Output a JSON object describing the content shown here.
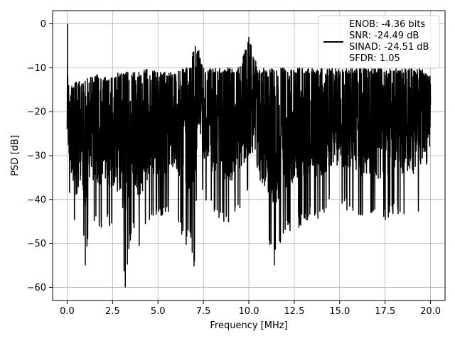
{
  "chart_data": {
    "type": "line",
    "title": "",
    "xlabel": "Frequency [MHz]",
    "ylabel": "PSD [dB]",
    "xlim": [
      -0.8,
      20.8
    ],
    "ylim": [
      -63,
      3
    ],
    "x_ticks": [
      0.0,
      2.5,
      5.0,
      7.5,
      10.0,
      12.5,
      15.0,
      17.5,
      20.0
    ],
    "x_tick_labels": [
      "0.0",
      "2.5",
      "5.0",
      "7.5",
      "10.0",
      "12.5",
      "15.0",
      "17.5",
      "20.0"
    ],
    "y_ticks": [
      0,
      -10,
      -20,
      -30,
      -40,
      -50,
      -60
    ],
    "y_tick_labels": [
      "0",
      "−10",
      "−20",
      "−30",
      "−40",
      "−50",
      "−60"
    ],
    "grid": true,
    "legend_position": "top-right",
    "legend_entries": [
      "ENOB: -4.36 bits",
      "SNR: -24.49 dB",
      "SINAD: -24.51 dB",
      "SFDR: 1.05"
    ],
    "series": [
      {
        "color": "#000000",
        "x": [
          0.0,
          0.02,
          0.05,
          0.1,
          0.2,
          0.3,
          0.45,
          0.6,
          0.75,
          0.9,
          1.0,
          1.2,
          1.5,
          1.8,
          2.0,
          2.4,
          2.8,
          3.2,
          3.6,
          4.0,
          4.5,
          5.0,
          5.5,
          6.0,
          6.5,
          6.8,
          7.0,
          7.2,
          7.5,
          8.0,
          8.5,
          9.0,
          9.5,
          10.0,
          10.5,
          11.0,
          11.4,
          12.0,
          12.5,
          13.0,
          13.5,
          14.0,
          14.5,
          15.0,
          15.5,
          16.0,
          16.5,
          17.0,
          17.5,
          18.0,
          18.5,
          19.0,
          19.5,
          20.0
        ],
        "y_upper": [
          -24,
          0,
          -12,
          -14,
          -14,
          -14,
          -13,
          -13,
          -13,
          -13,
          -12,
          -12,
          -12,
          -11,
          -12,
          -12,
          -11,
          -11,
          -11,
          -11,
          -10,
          -11,
          -11,
          -11,
          -10,
          -9,
          -5,
          -6,
          -10,
          -10,
          -10,
          -10,
          -10,
          -3,
          -10,
          -10,
          -10,
          -10,
          -10,
          -10,
          -10,
          -10,
          -10,
          -10,
          -10,
          -10,
          -10,
          -10,
          -10,
          -10,
          -10,
          -10,
          -10,
          -12
        ],
        "y_lower": [
          -24,
          -12,
          -35,
          -38,
          -42,
          -45,
          -47,
          -54,
          -43,
          -50,
          -55,
          -46,
          -45,
          -48,
          -44,
          -47,
          -50,
          -60,
          -45,
          -53,
          -45,
          -44,
          -43,
          -44,
          -51,
          -49,
          -57,
          -30,
          -40,
          -43,
          -45,
          -46,
          -43,
          -40,
          -45,
          -50,
          -55,
          -48,
          -47,
          -46,
          -44,
          -45,
          -41,
          -41,
          -43,
          -44,
          -45,
          -45,
          -45,
          -43,
          -44,
          -44,
          -42,
          -28
        ]
      }
    ]
  }
}
